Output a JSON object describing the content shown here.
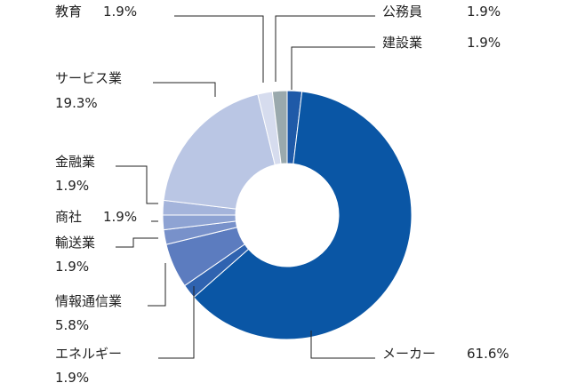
{
  "chart_data": {
    "type": "pie",
    "style": "donut",
    "title": "",
    "slices": [
      {
        "category": "建設業",
        "label": "建設業",
        "pct_text": "1.9%",
        "value": 1.9,
        "color": "#1f5aa8"
      },
      {
        "category": "メーカー",
        "label": "メーカー",
        "pct_text": "61.6%",
        "value": 61.6,
        "color": "#0a56a5"
      },
      {
        "category": "エネルギー",
        "label": "エネルギー",
        "pct_text": "1.9%",
        "value": 1.9,
        "color": "#2f63b0"
      },
      {
        "category": "情報通信業",
        "label": "情報通信業",
        "pct_text": "5.8%",
        "value": 5.8,
        "color": "#5c7cbf"
      },
      {
        "category": "輸送業",
        "label": "輸送業",
        "pct_text": "1.9%",
        "value": 1.9,
        "color": "#7891ca"
      },
      {
        "category": "商社",
        "label": "商社",
        "pct_text": "1.9%",
        "value": 1.9,
        "color": "#8ea3d3"
      },
      {
        "category": "金融業",
        "label": "金融業",
        "pct_text": "1.9%",
        "value": 1.9,
        "color": "#a4b4db"
      },
      {
        "category": "サービス業",
        "label": "サービス業",
        "pct_text": "19.3%",
        "value": 19.3,
        "color": "#bac6e4"
      },
      {
        "category": "教育",
        "label": "教育",
        "pct_text": "1.9%",
        "value": 1.9,
        "color": "#d6dcee"
      },
      {
        "category": "公務員",
        "label": "公務員",
        "pct_text": "1.9%",
        "value": 1.9,
        "color": "#9aa9ad"
      }
    ]
  }
}
